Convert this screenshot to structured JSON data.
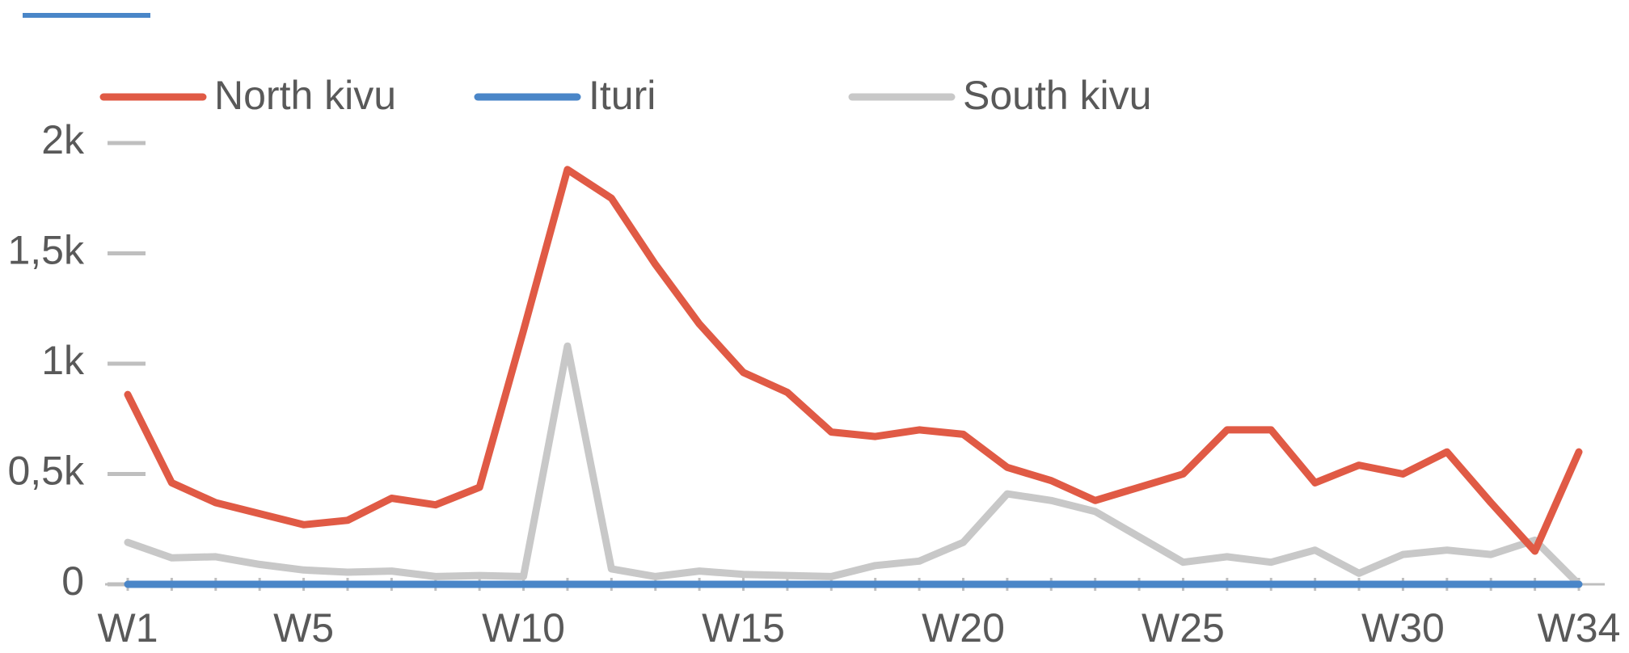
{
  "chart_data": {
    "type": "line",
    "categories": [
      "W1",
      null,
      null,
      null,
      "W5",
      null,
      null,
      null,
      null,
      "W10",
      null,
      null,
      null,
      null,
      "W15",
      null,
      null,
      null,
      null,
      "W20",
      null,
      null,
      null,
      null,
      "W25",
      null,
      null,
      null,
      null,
      "W30",
      null,
      null,
      null,
      "W34"
    ],
    "series": [
      {
        "name": "North kivu",
        "color": "#e05a45",
        "values": [
          860,
          460,
          370,
          320,
          270,
          290,
          390,
          360,
          440,
          1150,
          1880,
          1750,
          1450,
          1180,
          960,
          870,
          690,
          670,
          700,
          680,
          530,
          470,
          380,
          440,
          500,
          700,
          700,
          460,
          540,
          500,
          600,
          370,
          150,
          600
        ]
      },
      {
        "name": "Ituri",
        "color": "#4a86c8",
        "values": [
          0,
          0,
          0,
          0,
          0,
          0,
          0,
          0,
          0,
          0,
          0,
          0,
          0,
          0,
          0,
          0,
          0,
          0,
          0,
          0,
          0,
          0,
          0,
          0,
          0,
          0,
          0,
          0,
          0,
          0,
          0,
          0,
          0,
          0
        ]
      },
      {
        "name": "South kivu",
        "color": "#c8c8c8",
        "values": [
          190,
          120,
          125,
          90,
          65,
          55,
          60,
          35,
          40,
          35,
          1080,
          70,
          35,
          60,
          45,
          40,
          35,
          85,
          105,
          190,
          410,
          380,
          330,
          215,
          100,
          125,
          100,
          155,
          50,
          135,
          155,
          135,
          200,
          0
        ]
      }
    ],
    "ylim": [
      0,
      2000
    ],
    "yticks": [
      0,
      {
        "value": 500,
        "label": "0,5k"
      },
      {
        "value": 1000,
        "label": "1k"
      },
      {
        "value": 1500,
        "label": "1,5k"
      },
      {
        "value": 2000,
        "label": "2k"
      }
    ]
  }
}
